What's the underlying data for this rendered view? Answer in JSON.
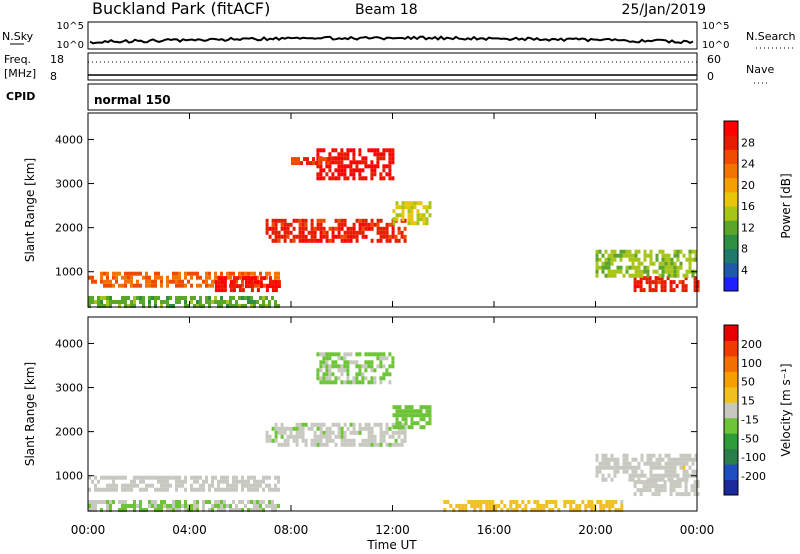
{
  "header": {
    "station": "Buckland Park (fitACF)",
    "beam": "Beam 18",
    "date": "25/Jan/2019"
  },
  "panels": {
    "nsky": {
      "label": "N.Sky",
      "ticks": [
        "10^5",
        "10^0"
      ],
      "right_ticks": [
        "10^5",
        "10^0"
      ],
      "right_label": "N.Search"
    },
    "freq": {
      "label_line1": "Freq.",
      "label_line2": "[MHz]",
      "ticks": [
        "18",
        "8"
      ],
      "right_ticks": [
        "60",
        "0"
      ],
      "right_label": "Nave"
    },
    "cpid": {
      "label": "CPID",
      "text": "normal 150"
    }
  },
  "chart_data": [
    {
      "type": "heatmap",
      "name": "power",
      "ylabel": "Slant Range [km]",
      "y_ticks": [
        1000,
        2000,
        3000,
        4000
      ],
      "ylim": [
        200,
        4600
      ],
      "x_ticks": [
        "00:00",
        "04:00",
        "08:00",
        "12:00",
        "16:00",
        "20:00",
        "00:00"
      ],
      "xlim_hours": [
        0,
        24
      ],
      "colorbar": {
        "label": "Power [dB]",
        "ticks": [
          4,
          8,
          12,
          16,
          20,
          24,
          28
        ],
        "range": [
          0,
          32
        ],
        "colors": [
          "#2020ff",
          "#1e5aa8",
          "#1f7a6b",
          "#2d8f3f",
          "#5aa62a",
          "#a7c419",
          "#e8c40a",
          "#f5a000",
          "#f27400",
          "#ef4a00",
          "#e61c00",
          "#ff0000"
        ]
      },
      "regions": [
        {
          "t": [
            0.0,
            7.5
          ],
          "r": [
            700,
            1000
          ],
          "level": 24
        },
        {
          "t": [
            5.0,
            7.5
          ],
          "r": [
            600,
            900
          ],
          "level": 30
        },
        {
          "t": [
            0.0,
            7.5
          ],
          "r": [
            200,
            450
          ],
          "level": 12
        },
        {
          "t": [
            7.0,
            12.5
          ],
          "r": [
            1700,
            2200
          ],
          "level": 28
        },
        {
          "t": [
            9.0,
            12.0
          ],
          "r": [
            3100,
            3800
          ],
          "level": 30
        },
        {
          "t": [
            8.0,
            9.5
          ],
          "r": [
            3500,
            3600
          ],
          "level": 26
        },
        {
          "t": [
            12.0,
            13.5
          ],
          "r": [
            2100,
            2600
          ],
          "level": 16
        },
        {
          "t": [
            21.5,
            24.0
          ],
          "r": [
            600,
            900
          ],
          "level": 28
        },
        {
          "t": [
            20.0,
            24.0
          ],
          "r": [
            900,
            1500
          ],
          "level": 14
        }
      ]
    },
    {
      "type": "heatmap",
      "name": "velocity",
      "ylabel": "Slant Range [km]",
      "y_ticks": [
        1000,
        2000,
        3000,
        4000
      ],
      "ylim": [
        200,
        4600
      ],
      "x_ticks": [
        "00:00",
        "04:00",
        "08:00",
        "12:00",
        "16:00",
        "20:00",
        "00:00"
      ],
      "xlabel": "Time UT",
      "xlim_hours": [
        0,
        24
      ],
      "colorbar": {
        "label": "Velocity [m s⁻¹]",
        "ticks": [
          200,
          100,
          50,
          15,
          -15,
          -50,
          -100,
          -200
        ],
        "range": [
          -250,
          250
        ],
        "colors": [
          "#1a2a9a",
          "#1f4ec0",
          "#2a7e4a",
          "#2e9c3a",
          "#6cc436",
          "#c8c8c0",
          "#f0c020",
          "#f5a000",
          "#f27000",
          "#ef3a00",
          "#e60000"
        ]
      },
      "regions": [
        {
          "t": [
            0.0,
            7.5
          ],
          "r": [
            700,
            1000
          ],
          "level": 0
        },
        {
          "t": [
            0.0,
            7.5
          ],
          "r": [
            200,
            450
          ],
          "level": -20
        },
        {
          "t": [
            7.0,
            12.5
          ],
          "r": [
            1700,
            2200
          ],
          "level": -10
        },
        {
          "t": [
            9.0,
            12.0
          ],
          "r": [
            3100,
            3800
          ],
          "level": -30
        },
        {
          "t": [
            12.0,
            13.5
          ],
          "r": [
            2100,
            2600
          ],
          "level": -40
        },
        {
          "t": [
            14.0,
            21.0
          ],
          "r": [
            200,
            450
          ],
          "level": 40
        },
        {
          "t": [
            21.5,
            24.0
          ],
          "r": [
            600,
            900
          ],
          "level": 0
        },
        {
          "t": [
            20.0,
            24.0
          ],
          "r": [
            900,
            1500
          ],
          "level": 5
        }
      ]
    }
  ]
}
